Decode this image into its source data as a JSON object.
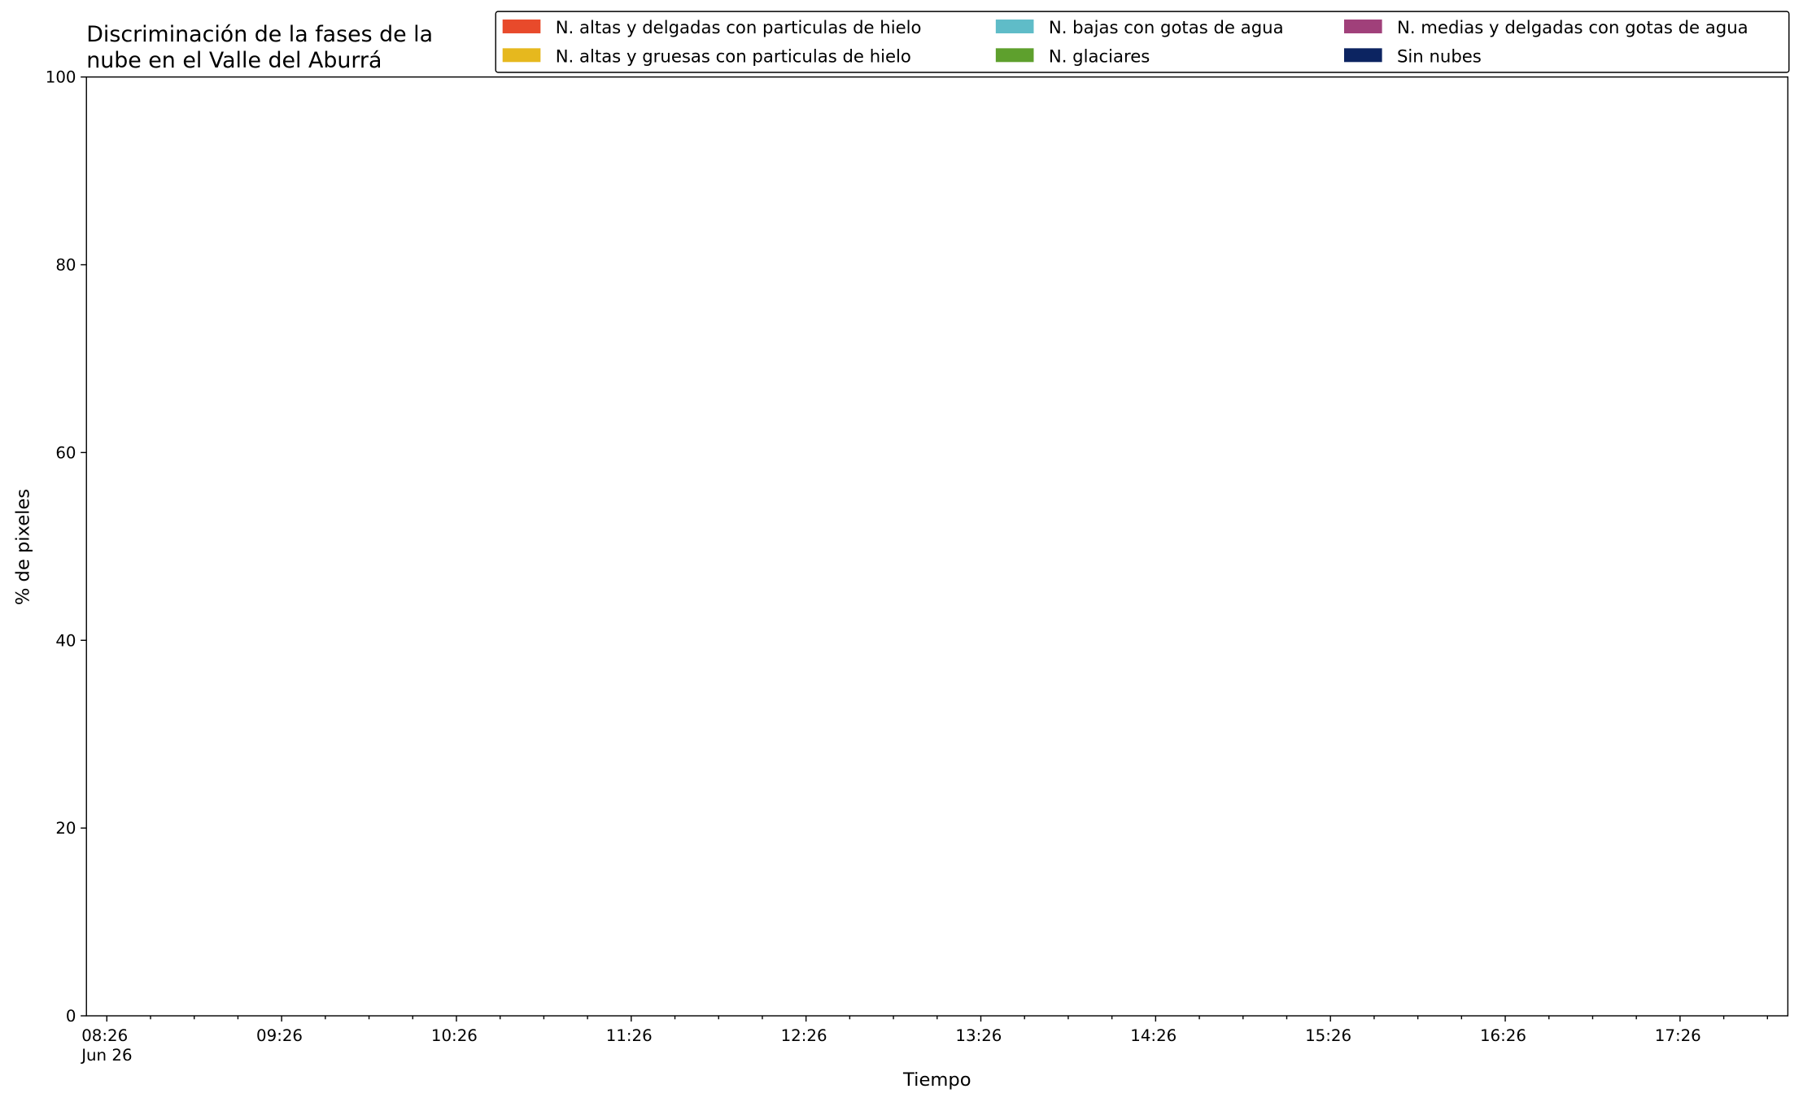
{
  "chart_data": {
    "type": "stacked_area",
    "title": "Discriminación de la fases de la\nnube en el Valle del Aburrá",
    "xlabel": "Tiempo",
    "ylabel": "% de pixeles",
    "x": [],
    "series": [
      {
        "name": "N. altas y delgadas con particulas de hielo",
        "color": "#e84a2b",
        "values": []
      },
      {
        "name": "N. altas y gruesas con particulas de hielo",
        "color": "#e6b81e",
        "values": []
      },
      {
        "name": "N. bajas con gotas de agua",
        "color": "#5fbcc8",
        "values": []
      },
      {
        "name": "N. glaciares",
        "color": "#5ea02d",
        "values": []
      },
      {
        "name": "N. medias y delgadas con gotas de agua",
        "color": "#a0407a",
        "values": []
      },
      {
        "name": "Sin nubes",
        "color": "#0c2461",
        "values": []
      }
    ],
    "xlim": [
      "08:19",
      "18:03"
    ],
    "xticks": [
      {
        "value": "08:26",
        "label": "08:26\nJun 26"
      },
      "09:26",
      "10:26",
      "11:26",
      "12:26",
      "13:26",
      "14:26",
      "15:26",
      "16:26",
      "17:26"
    ],
    "xminorticks": [
      "08:41",
      "08:56",
      "09:11",
      "09:41",
      "09:56",
      "10:11",
      "10:41",
      "10:56",
      "11:11",
      "11:41",
      "11:56",
      "12:11",
      "12:41",
      "12:56",
      "13:11",
      "13:41",
      "13:56",
      "14:11",
      "14:41",
      "14:56",
      "15:11",
      "15:41",
      "15:56",
      "16:11",
      "16:41",
      "16:56",
      "17:11",
      "17:41",
      "17:56"
    ],
    "ylim": [
      0,
      100
    ],
    "yticks": [
      0,
      20,
      40,
      60,
      80,
      100
    ],
    "legend": "top-right",
    "legend_columns": 3
  }
}
